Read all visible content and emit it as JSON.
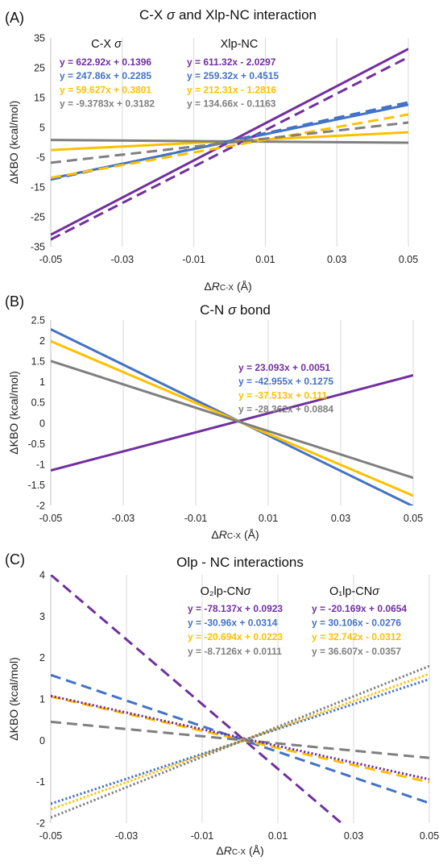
{
  "colors": {
    "purple": "#7030A0",
    "blue": "#4472C4",
    "yellow": "#FFC000",
    "gray": "#7F7F7F"
  },
  "chart_data": [
    {
      "panel_label": "(A)",
      "type": "line",
      "title_parts": [
        "C-X ",
        "σ",
        " and Xlp-NC interaction"
      ],
      "ylabel": "ΔKBO (kcal/mol)",
      "xlabel_parts": [
        "Δ",
        "R",
        "C-X",
        " (Å)"
      ],
      "xlim": [
        -0.05,
        0.05
      ],
      "ylim": [
        -35,
        35
      ],
      "xticks": [
        "-0.05",
        "-0.03",
        "-0.01",
        "0.01",
        "0.03",
        "0.05"
      ],
      "yticks": [
        "35",
        "25",
        "15",
        "5",
        "-5",
        "-15",
        "-25",
        "-35"
      ],
      "group_headers": [
        [
          "C-X ",
          "σ"
        ],
        [
          "Xlp-NC",
          ""
        ]
      ],
      "series": [
        {
          "color": "purple",
          "style": "solid",
          "slope": 622.92,
          "intercept": 0.1396,
          "label": "y = 622.92x + 0.1396"
        },
        {
          "color": "blue",
          "style": "solid",
          "slope": 247.86,
          "intercept": 0.2285,
          "label": "y = 247.86x + 0.2285"
        },
        {
          "color": "yellow",
          "style": "solid",
          "slope": 59.627,
          "intercept": 0.3801,
          "label": "y = 59.627x + 0.3801"
        },
        {
          "color": "gray",
          "style": "solid",
          "slope": -9.3783,
          "intercept": 0.3182,
          "label": "y = -9.3783x + 0.3182"
        },
        {
          "color": "purple",
          "style": "dashed",
          "slope": 611.32,
          "intercept": -2.0297,
          "label": "y = 611.32x - 2.0297"
        },
        {
          "color": "blue",
          "style": "dashed",
          "slope": 259.32,
          "intercept": 0.4515,
          "label": "y = 259.32x + 0.4515"
        },
        {
          "color": "yellow",
          "style": "dashed",
          "slope": 212.31,
          "intercept": -1.2816,
          "label": "y = 212.31x - 1.2816"
        },
        {
          "color": "gray",
          "style": "dashed",
          "slope": 134.66,
          "intercept": -0.1163,
          "label": "y = 134.66x - 0.1163"
        }
      ]
    },
    {
      "panel_label": "(B)",
      "type": "line",
      "title_parts": [
        "C-N ",
        "σ",
        " bond"
      ],
      "ylabel": "ΔKBO (kcal/mol)",
      "xlabel_parts": [
        "Δ",
        "R",
        "C-X",
        " (Å)"
      ],
      "xlim": [
        -0.05,
        0.05
      ],
      "ylim": [
        -2,
        2.5
      ],
      "xticks": [
        "-0.05",
        "-0.03",
        "-0.01",
        "0.01",
        "0.03",
        "0.05"
      ],
      "yticks": [
        "2.5",
        "2",
        "1.5",
        "1",
        "0.5",
        "0",
        "-0.5",
        "-1",
        "-1.5",
        "-2"
      ],
      "series": [
        {
          "color": "purple",
          "style": "solid",
          "slope": 23.093,
          "intercept": 0.0051,
          "label": "y = 23.093x + 0.0051"
        },
        {
          "color": "blue",
          "style": "solid",
          "slope": -42.955,
          "intercept": 0.1275,
          "label": "y = -42.955x + 0.1275"
        },
        {
          "color": "yellow",
          "style": "solid",
          "slope": -37.513,
          "intercept": 0.111,
          "label": "y = -37.513x + 0.111"
        },
        {
          "color": "gray",
          "style": "solid",
          "slope": -28.362,
          "intercept": 0.0884,
          "label": "y = -28.362x + 0.0884"
        }
      ]
    },
    {
      "panel_label": "(C)",
      "type": "line",
      "title_parts": [
        "Olp - NC interactions"
      ],
      "ylabel": "ΔKBO (kcal/mol)",
      "xlabel_parts": [
        "Δ",
        "R",
        "C-X",
        " (Å)"
      ],
      "xlim": [
        -0.05,
        0.05
      ],
      "ylim": [
        -2,
        4
      ],
      "xticks": [
        "-0.05",
        "-0.03",
        "-0.01",
        "0.01",
        "0.03",
        "0.05"
      ],
      "yticks": [
        "4",
        "3",
        "2",
        "1",
        "0",
        "-1",
        "-2"
      ],
      "group_headers": [
        [
          "O₂lp-CN",
          "σ"
        ],
        [
          "O₁lp-CN",
          "σ"
        ]
      ],
      "series": [
        {
          "color": "purple",
          "style": "dashed",
          "slope": -78.137,
          "intercept": 0.0923,
          "label": "y = -78.137x + 0.0923"
        },
        {
          "color": "blue",
          "style": "dashed",
          "slope": -30.96,
          "intercept": 0.0314,
          "label": "y = -30.96x + 0.0314"
        },
        {
          "color": "yellow",
          "style": "dashed",
          "slope": -20.694,
          "intercept": 0.0223,
          "label": "y = -20.694x + 0.0223"
        },
        {
          "color": "gray",
          "style": "dashed",
          "slope": -8.7126,
          "intercept": 0.0111,
          "label": "y = -8.7126x + 0.0111"
        },
        {
          "color": "purple",
          "style": "dotted",
          "slope": -20.169,
          "intercept": 0.0654,
          "label": "y = -20.169x + 0.0654"
        },
        {
          "color": "blue",
          "style": "dotted",
          "slope": 30.106,
          "intercept": -0.0276,
          "label": "y = 30.106x - 0.0276"
        },
        {
          "color": "yellow",
          "style": "dotted",
          "slope": 32.742,
          "intercept": -0.0312,
          "label": "y = 32.742x - 0.0312"
        },
        {
          "color": "gray",
          "style": "dotted",
          "slope": 36.607,
          "intercept": -0.0357,
          "label": "y = 36.607x - 0.0357"
        }
      ]
    }
  ]
}
